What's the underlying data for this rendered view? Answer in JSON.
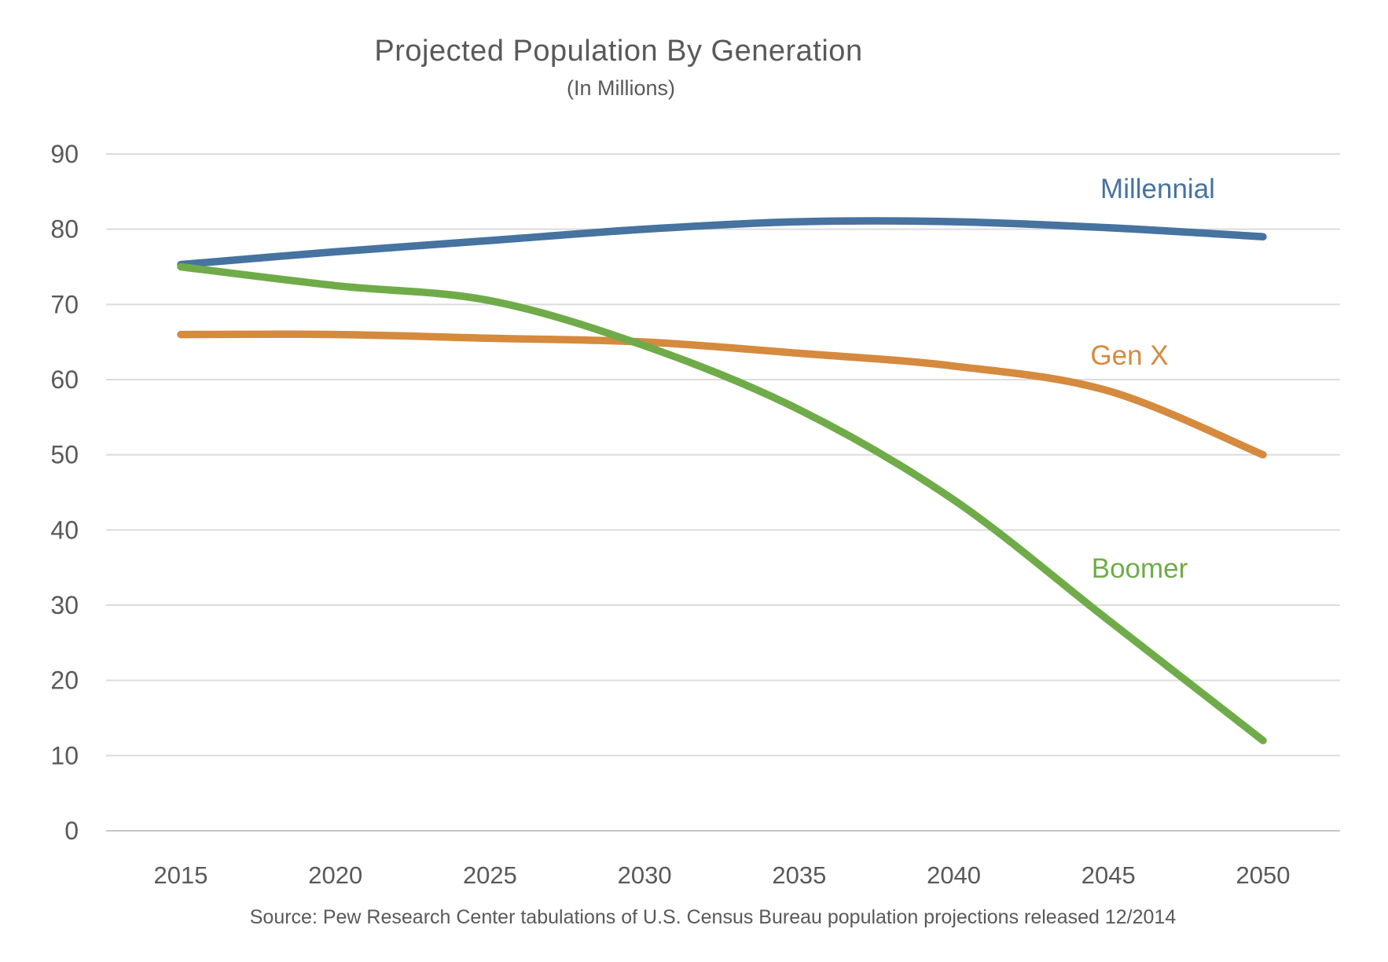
{
  "title": "Projected Population By Generation",
  "subtitle": "(In Millions)",
  "source": "Source: Pew Research Center tabulations of U.S. Census Bureau population projections released 12/2014",
  "colors": {
    "title_text": "#595959",
    "axis_text": "#595959",
    "gridline": "#dcdcdc",
    "zero_line": "#c6c6c6",
    "millennial": "#4673a0",
    "genx": "#d58a3e",
    "boomer": "#6fac49"
  },
  "chart_data": {
    "type": "line",
    "title": "Projected Population By Generation",
    "subtitle": "(In Millions)",
    "xlabel": "",
    "ylabel": "",
    "x": [
      2015,
      2020,
      2025,
      2030,
      2035,
      2040,
      2045,
      2050
    ],
    "series": [
      {
        "name": "Millennial",
        "color": "#4673a0",
        "values": [
          75.3,
          77,
          78.5,
          80,
          81,
          81,
          80.2,
          79
        ]
      },
      {
        "name": "Gen X",
        "color": "#d58a3e",
        "values": [
          66,
          66,
          65.5,
          65,
          63.5,
          61.8,
          58.5,
          50
        ]
      },
      {
        "name": "Boomer",
        "color": "#6fac49",
        "values": [
          75,
          72.5,
          70.5,
          64.5,
          56,
          44,
          28,
          12
        ]
      }
    ],
    "ylim": [
      0,
      90
    ],
    "ytick_step": 10,
    "grid": true,
    "legend_position": "inline-labels-right"
  }
}
